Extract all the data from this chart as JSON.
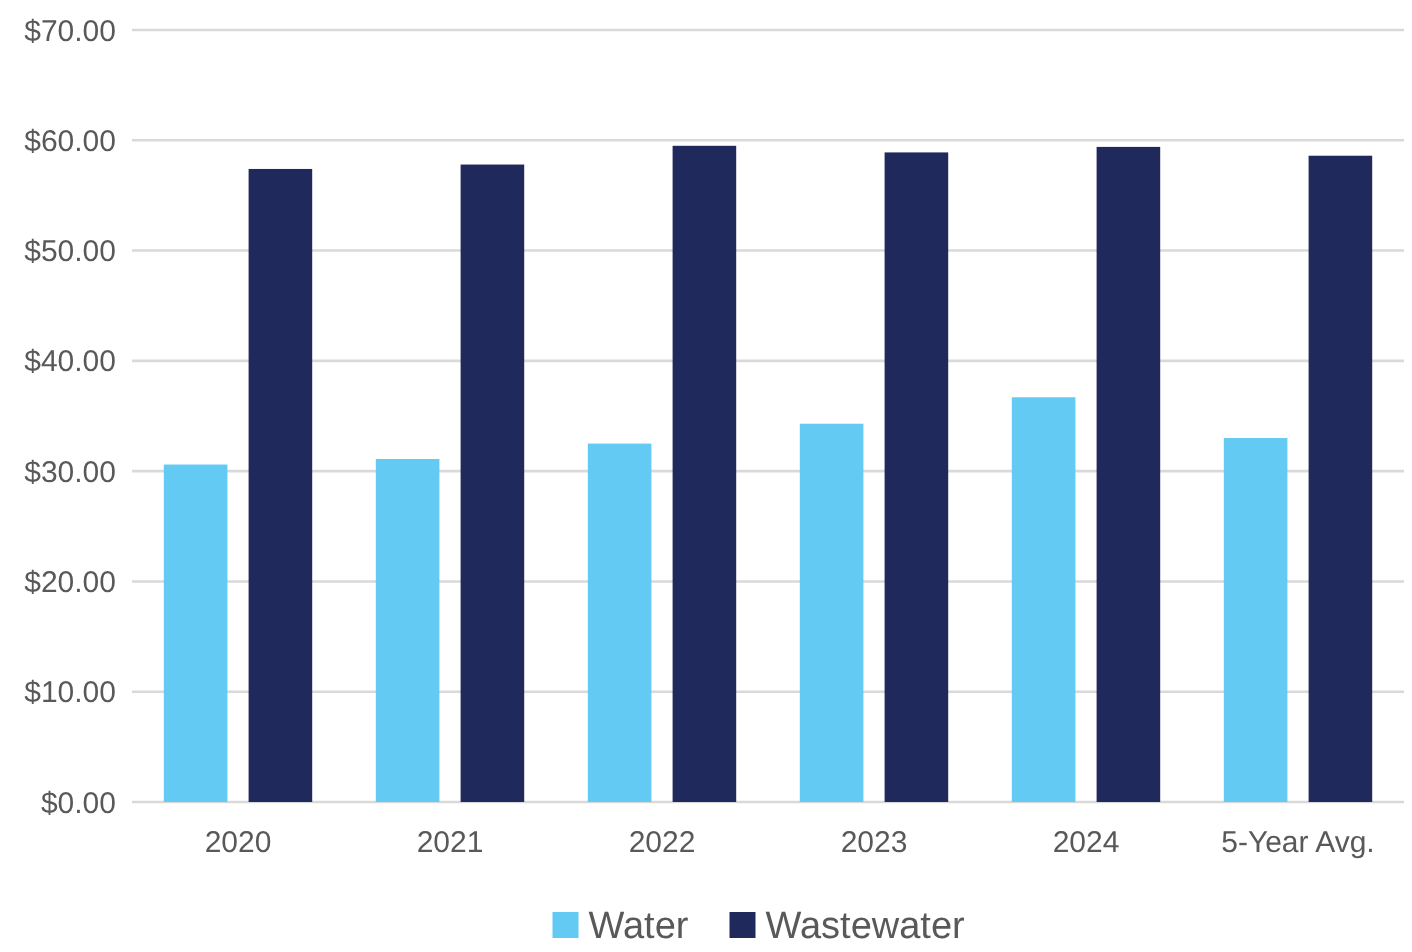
{
  "chart_data": {
    "type": "bar",
    "categories": [
      "2020",
      "2021",
      "2022",
      "2023",
      "2024",
      "5-Year Avg."
    ],
    "series": [
      {
        "name": "Water",
        "color": "#63cbf3",
        "values": [
          30.6,
          31.1,
          32.5,
          34.3,
          36.7,
          33.0
        ]
      },
      {
        "name": "Wastewater",
        "color": "#20295c",
        "values": [
          57.4,
          57.8,
          59.5,
          58.9,
          59.4,
          58.6
        ]
      }
    ],
    "ylim": [
      0,
      70
    ],
    "yticks": [
      {
        "value": 0,
        "label": "$0.00"
      },
      {
        "value": 10,
        "label": "$10.00"
      },
      {
        "value": 20,
        "label": "$20.00"
      },
      {
        "value": 30,
        "label": "$30.00"
      },
      {
        "value": 40,
        "label": "$40.00"
      },
      {
        "value": 50,
        "label": "$50.00"
      },
      {
        "value": 60,
        "label": "$60.00"
      },
      {
        "value": 70,
        "label": "$70.00"
      }
    ],
    "grid": "y",
    "legend": "bottom"
  }
}
